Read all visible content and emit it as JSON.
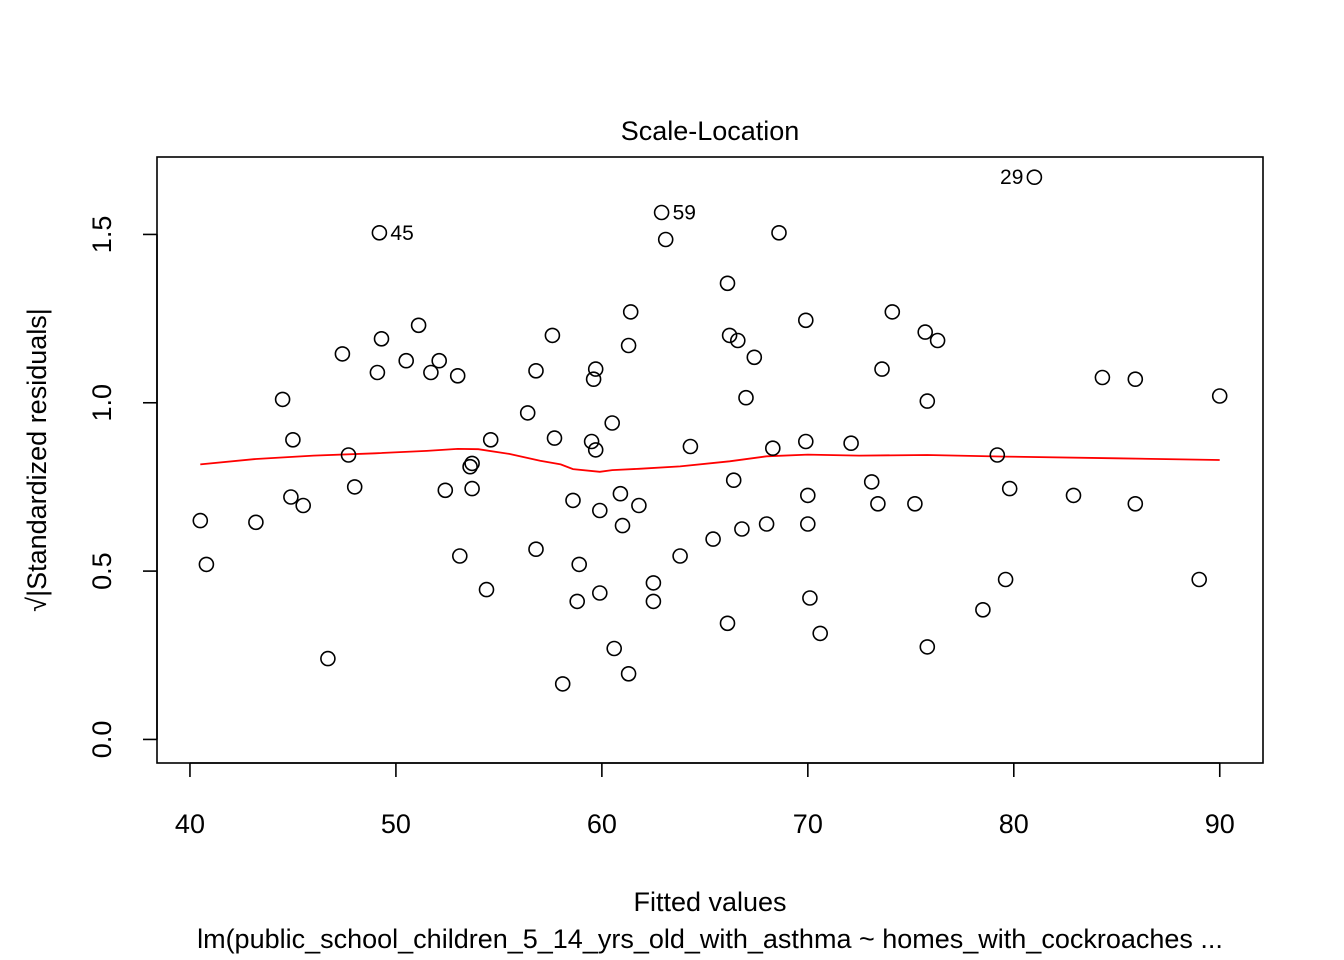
{
  "chart_data": {
    "type": "scatter",
    "title": "Scale-Location",
    "xlabel": "Fitted values",
    "ylabel": "√|Standardized residuals|",
    "subtitle": "lm(public_school_children_5_14_yrs_old_with_asthma ~ homes_with_cockroaches ...",
    "xlim": [
      38.4,
      92.1
    ],
    "ylim": [
      -0.07,
      1.73
    ],
    "xticks": [
      40,
      50,
      60,
      70,
      80,
      90
    ],
    "yticks": [
      0.0,
      0.5,
      1.0,
      1.5
    ],
    "xtick_labels": [
      "40",
      "50",
      "60",
      "70",
      "80",
      "90"
    ],
    "ytick_labels": [
      "0.0",
      "0.5",
      "1.0",
      "1.5"
    ],
    "grid": false,
    "colors": {
      "points": "#000000",
      "smoother": "#ff0000"
    },
    "points": [
      {
        "x": 40.5,
        "y": 0.65
      },
      {
        "x": 40.8,
        "y": 0.52
      },
      {
        "x": 43.2,
        "y": 0.645
      },
      {
        "x": 44.5,
        "y": 1.01
      },
      {
        "x": 44.9,
        "y": 0.72
      },
      {
        "x": 45.0,
        "y": 0.89
      },
      {
        "x": 45.5,
        "y": 0.695
      },
      {
        "x": 46.7,
        "y": 0.24
      },
      {
        "x": 47.4,
        "y": 1.145
      },
      {
        "x": 47.7,
        "y": 0.845
      },
      {
        "x": 48.0,
        "y": 0.75
      },
      {
        "x": 49.1,
        "y": 1.09
      },
      {
        "x": 49.3,
        "y": 1.19
      },
      {
        "x": 49.2,
        "y": 1.505
      },
      {
        "x": 50.5,
        "y": 1.125
      },
      {
        "x": 51.1,
        "y": 1.23
      },
      {
        "x": 51.7,
        "y": 1.09
      },
      {
        "x": 52.1,
        "y": 1.125
      },
      {
        "x": 52.4,
        "y": 0.74
      },
      {
        "x": 53.0,
        "y": 1.08
      },
      {
        "x": 53.1,
        "y": 0.545
      },
      {
        "x": 53.6,
        "y": 0.81
      },
      {
        "x": 53.7,
        "y": 0.82
      },
      {
        "x": 53.7,
        "y": 0.745
      },
      {
        "x": 54.4,
        "y": 0.445
      },
      {
        "x": 54.6,
        "y": 0.89
      },
      {
        "x": 56.4,
        "y": 0.97
      },
      {
        "x": 56.8,
        "y": 1.095
      },
      {
        "x": 56.8,
        "y": 0.565
      },
      {
        "x": 57.6,
        "y": 1.2
      },
      {
        "x": 57.7,
        "y": 0.895
      },
      {
        "x": 58.1,
        "y": 0.165
      },
      {
        "x": 58.6,
        "y": 0.71
      },
      {
        "x": 58.8,
        "y": 0.41
      },
      {
        "x": 58.9,
        "y": 0.52
      },
      {
        "x": 59.5,
        "y": 0.885
      },
      {
        "x": 59.6,
        "y": 1.07
      },
      {
        "x": 59.7,
        "y": 0.86
      },
      {
        "x": 59.7,
        "y": 1.1
      },
      {
        "x": 59.9,
        "y": 0.68
      },
      {
        "x": 59.9,
        "y": 0.435
      },
      {
        "x": 60.5,
        "y": 0.94
      },
      {
        "x": 60.6,
        "y": 0.27
      },
      {
        "x": 60.9,
        "y": 0.73
      },
      {
        "x": 61.0,
        "y": 0.635
      },
      {
        "x": 61.3,
        "y": 1.17
      },
      {
        "x": 61.3,
        "y": 0.195
      },
      {
        "x": 61.4,
        "y": 1.27
      },
      {
        "x": 61.8,
        "y": 0.695
      },
      {
        "x": 62.5,
        "y": 0.465
      },
      {
        "x": 62.5,
        "y": 0.41
      },
      {
        "x": 62.9,
        "y": 1.565
      },
      {
        "x": 63.1,
        "y": 1.485
      },
      {
        "x": 63.8,
        "y": 0.545
      },
      {
        "x": 64.3,
        "y": 0.87
      },
      {
        "x": 65.4,
        "y": 0.595
      },
      {
        "x": 66.1,
        "y": 1.355
      },
      {
        "x": 66.2,
        "y": 1.2
      },
      {
        "x": 66.1,
        "y": 0.345
      },
      {
        "x": 66.4,
        "y": 0.77
      },
      {
        "x": 66.6,
        "y": 1.185
      },
      {
        "x": 66.8,
        "y": 0.625
      },
      {
        "x": 67.0,
        "y": 1.015
      },
      {
        "x": 67.4,
        "y": 1.135
      },
      {
        "x": 68.0,
        "y": 0.64
      },
      {
        "x": 68.3,
        "y": 0.865
      },
      {
        "x": 68.6,
        "y": 1.505
      },
      {
        "x": 69.9,
        "y": 1.245
      },
      {
        "x": 69.9,
        "y": 0.885
      },
      {
        "x": 70.0,
        "y": 0.725
      },
      {
        "x": 70.0,
        "y": 0.64
      },
      {
        "x": 70.1,
        "y": 0.42
      },
      {
        "x": 70.6,
        "y": 0.315
      },
      {
        "x": 72.1,
        "y": 0.88
      },
      {
        "x": 73.1,
        "y": 0.765
      },
      {
        "x": 73.4,
        "y": 0.7
      },
      {
        "x": 73.6,
        "y": 1.1
      },
      {
        "x": 74.1,
        "y": 1.27
      },
      {
        "x": 75.2,
        "y": 0.7
      },
      {
        "x": 75.7,
        "y": 1.21
      },
      {
        "x": 75.8,
        "y": 1.005
      },
      {
        "x": 75.8,
        "y": 0.275
      },
      {
        "x": 76.3,
        "y": 1.185
      },
      {
        "x": 78.5,
        "y": 0.385
      },
      {
        "x": 79.2,
        "y": 0.845
      },
      {
        "x": 79.6,
        "y": 0.475
      },
      {
        "x": 79.8,
        "y": 0.745
      },
      {
        "x": 81.0,
        "y": 1.67
      },
      {
        "x": 82.9,
        "y": 0.725
      },
      {
        "x": 84.3,
        "y": 1.075
      },
      {
        "x": 85.9,
        "y": 1.07
      },
      {
        "x": 85.9,
        "y": 0.7
      },
      {
        "x": 89.0,
        "y": 0.475
      },
      {
        "x": 90.0,
        "y": 1.02
      }
    ],
    "annotations": [
      {
        "label": "45",
        "x": 49.2,
        "y": 1.505,
        "side": "right"
      },
      {
        "label": "59",
        "x": 62.9,
        "y": 1.565,
        "side": "right"
      },
      {
        "label": "29",
        "x": 81.0,
        "y": 1.67,
        "side": "left"
      }
    ],
    "smoother": [
      {
        "x": 40.5,
        "y": 0.817
      },
      {
        "x": 43.2,
        "y": 0.833
      },
      {
        "x": 46.0,
        "y": 0.843
      },
      {
        "x": 49.0,
        "y": 0.85
      },
      {
        "x": 51.5,
        "y": 0.857
      },
      {
        "x": 53.0,
        "y": 0.863
      },
      {
        "x": 54.0,
        "y": 0.862
      },
      {
        "x": 55.5,
        "y": 0.848
      },
      {
        "x": 57.0,
        "y": 0.828
      },
      {
        "x": 58.0,
        "y": 0.817
      },
      {
        "x": 58.6,
        "y": 0.803
      },
      {
        "x": 59.9,
        "y": 0.795
      },
      {
        "x": 60.5,
        "y": 0.8
      },
      {
        "x": 61.8,
        "y": 0.804
      },
      {
        "x": 63.8,
        "y": 0.811
      },
      {
        "x": 66.2,
        "y": 0.826
      },
      {
        "x": 68.0,
        "y": 0.841
      },
      {
        "x": 70.0,
        "y": 0.846
      },
      {
        "x": 72.5,
        "y": 0.843
      },
      {
        "x": 75.8,
        "y": 0.845
      },
      {
        "x": 79.6,
        "y": 0.84
      },
      {
        "x": 85.0,
        "y": 0.835
      },
      {
        "x": 90.0,
        "y": 0.83
      }
    ]
  }
}
